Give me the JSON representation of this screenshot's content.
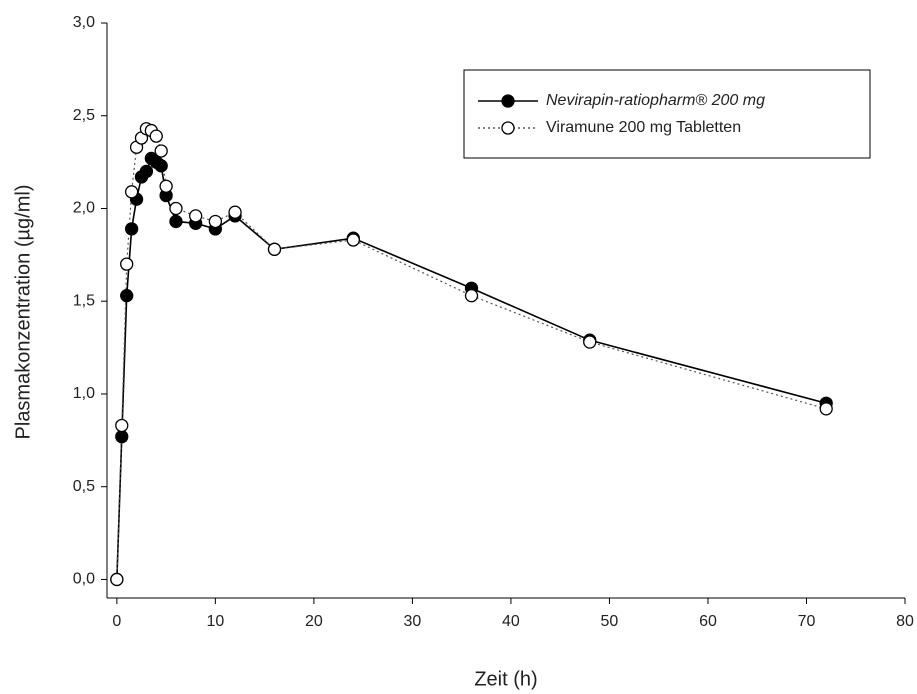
{
  "chart_data": {
    "type": "line",
    "xlabel": "Zeit (h)",
    "ylabel": "Plasmakonzentration (µg/ml)",
    "x": [
      0,
      0.5,
      1,
      1.5,
      2,
      2.5,
      3,
      3.5,
      4,
      4.5,
      5,
      6,
      8,
      10,
      12,
      16,
      24,
      36,
      48,
      72
    ],
    "series": [
      {
        "name": "Nevirapin-ratiopharm® 200 mg",
        "color": "#000000",
        "marker": "filled",
        "line_style": "solid",
        "values": [
          0.0,
          0.77,
          1.53,
          1.89,
          2.05,
          2.17,
          2.2,
          2.27,
          2.25,
          2.23,
          2.07,
          1.93,
          1.92,
          1.89,
          1.96,
          1.78,
          1.84,
          1.57,
          1.29,
          0.95
        ]
      },
      {
        "name": "Viramune 200 mg Tabletten",
        "color": "#555555",
        "marker": "open",
        "line_style": "dotted",
        "values": [
          0.0,
          0.83,
          1.7,
          2.09,
          2.33,
          2.38,
          2.43,
          2.42,
          2.39,
          2.31,
          2.12,
          2.0,
          1.96,
          1.93,
          1.98,
          1.78,
          1.83,
          1.53,
          1.28,
          0.92
        ]
      }
    ],
    "xlim": [
      -1,
      80
    ],
    "ylim": [
      -0.1,
      3.0
    ],
    "xticks": [
      0,
      10,
      20,
      30,
      40,
      50,
      60,
      70,
      80
    ],
    "yticks": [
      {
        "value": 0,
        "label": "0,0"
      },
      {
        "value": 0.5,
        "label": "0,5"
      },
      {
        "value": 1,
        "label": "1,0"
      },
      {
        "value": 1.5,
        "label": "1,5"
      },
      {
        "value": 2,
        "label": "2,0"
      },
      {
        "value": 2.5,
        "label": "2,5"
      },
      {
        "value": 3,
        "label": "3,0"
      }
    ],
    "legend": "upper right",
    "grid": false
  }
}
